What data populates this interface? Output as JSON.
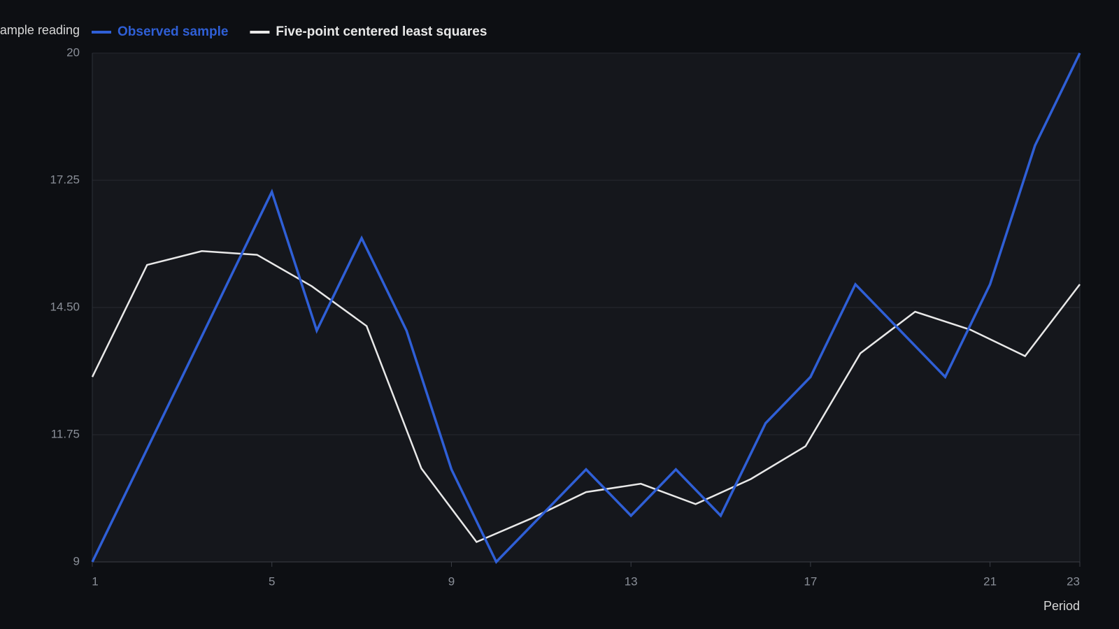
{
  "chart_data": {
    "type": "line",
    "y_label": "Sample reading",
    "x_label": "Period",
    "xlim": [
      1,
      23
    ],
    "xticks": [
      1,
      5,
      9,
      13,
      17,
      21,
      23
    ],
    "ylim": [
      9,
      20
    ],
    "yticks": [
      9,
      11.75,
      {
        "value": 14.5,
        "label": "14.50"
      },
      17.25,
      20
    ],
    "grid": true,
    "series": [
      {
        "name": "Observed sample",
        "color": "#2f5fd6",
        "x": [
          1,
          2,
          3,
          4,
          5,
          6,
          7,
          8,
          9,
          10,
          11,
          12,
          13,
          14,
          15,
          16,
          17,
          18,
          19,
          20,
          21,
          22,
          23
        ],
        "values": [
          9,
          11,
          13,
          15,
          17,
          14,
          16,
          14,
          11,
          9,
          10,
          11,
          10,
          11,
          10,
          12,
          13,
          15,
          14,
          13,
          15,
          18,
          20
        ]
      },
      {
        "name": "Five-point centered least squares",
        "color": "#e8e8e8",
        "x": [
          1,
          2.22,
          3.44,
          4.67,
          5.89,
          7.11,
          8.33,
          9.56,
          10.78,
          12,
          13.22,
          14.44,
          15.67,
          16.89,
          18.11,
          19.33,
          20.56,
          21.78,
          23
        ],
        "values": [
          13.0,
          15.42,
          15.72,
          15.64,
          14.96,
          14.1,
          11.02,
          9.43,
          9.94,
          10.51,
          10.69,
          10.25,
          10.79,
          11.5,
          13.51,
          14.41,
          14.02,
          13.45,
          15.0
        ]
      }
    ]
  }
}
